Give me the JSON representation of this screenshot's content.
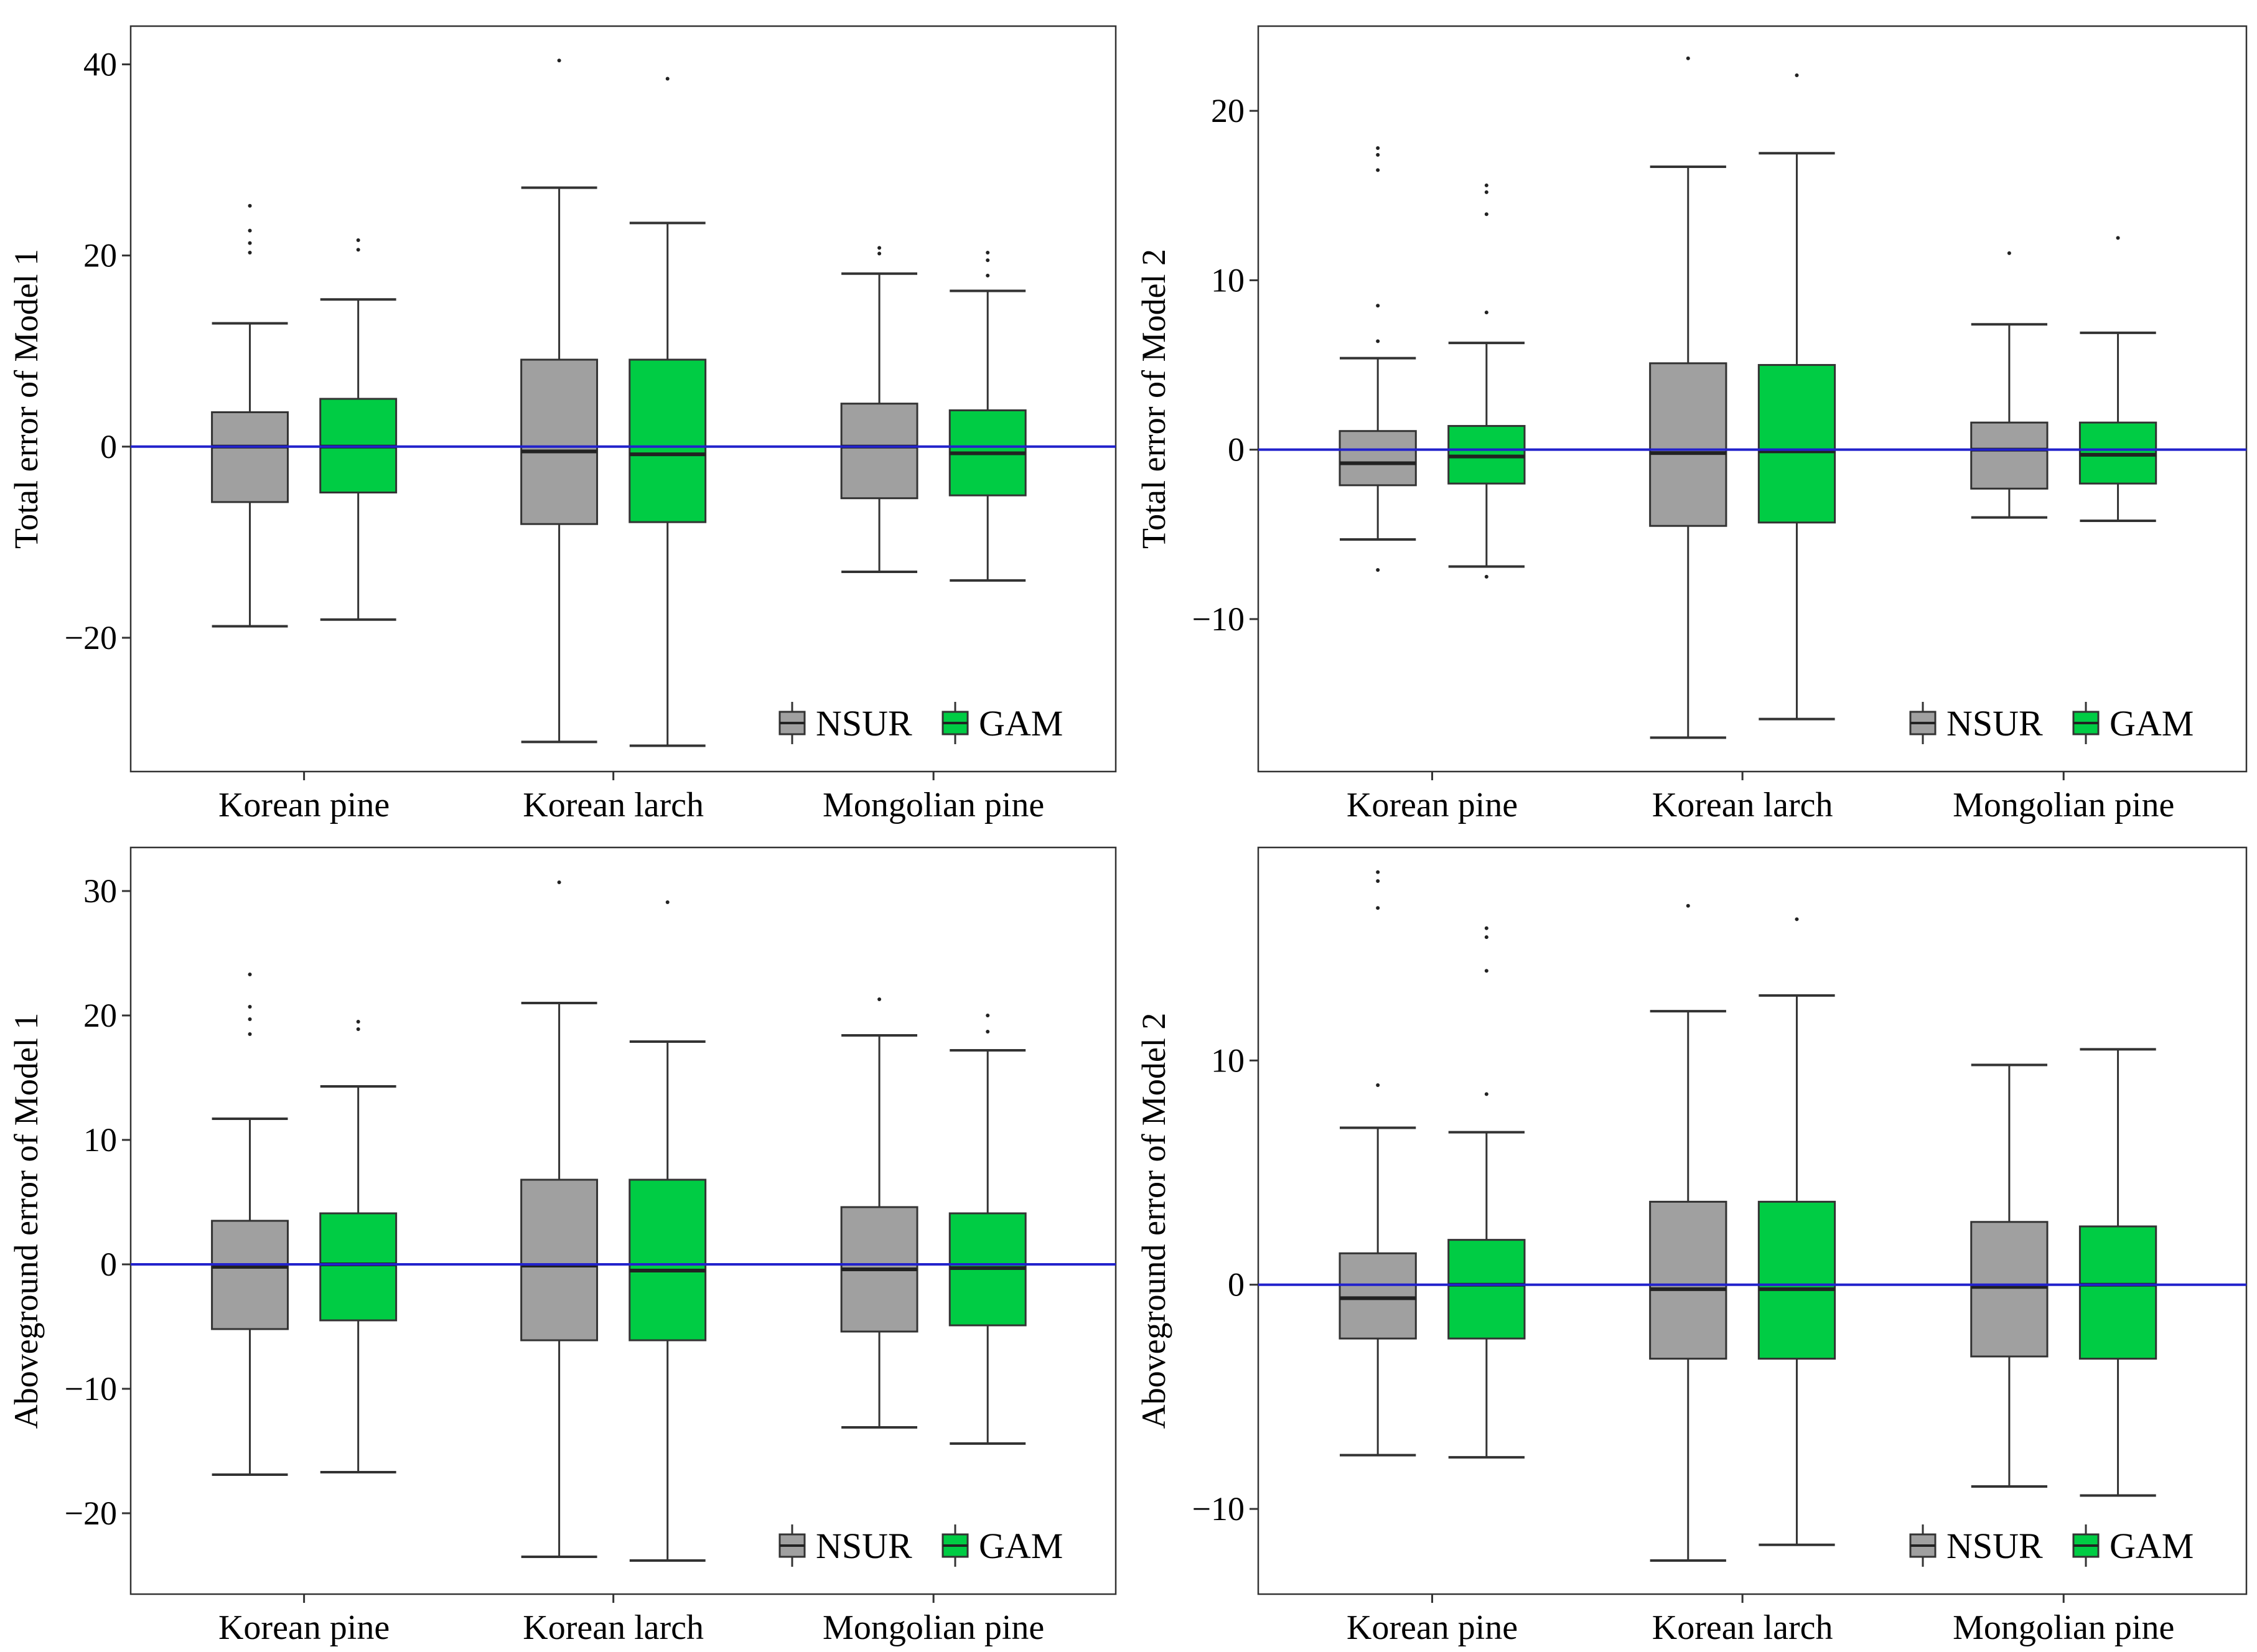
{
  "colors": {
    "NSUR": "#a0a0a0",
    "GAM": "#00cc44",
    "refline": "#2222cc",
    "frame": "#333333"
  },
  "legend": [
    {
      "name": "NSUR",
      "color": "#a0a0a0"
    },
    {
      "name": "GAM",
      "color": "#00cc44"
    }
  ],
  "chart_data": [
    {
      "type": "box",
      "ylabel": "Total error of Model 1",
      "categories": [
        "Korean pine",
        "Korean larch",
        "Mongolian pine"
      ],
      "ylim": [
        -34,
        44
      ],
      "yticks": [
        -20,
        0,
        20,
        40
      ],
      "ytick_labels": [
        "−20",
        "0",
        "20",
        "40"
      ],
      "refline": 0,
      "legend_position": "bottom-right",
      "series": [
        {
          "name": "NSUR",
          "boxes": [
            {
              "low": -18.8,
              "q1": -5.8,
              "median": 0,
              "q3": 3.6,
              "high": 12.9,
              "outliers": [
                20.3,
                21.3,
                22.6,
                25.2
              ]
            },
            {
              "low": -30.9,
              "q1": -8.1,
              "median": -0.5,
              "q3": 9.1,
              "high": 27.1,
              "outliers": [
                40.4
              ]
            },
            {
              "low": -13.1,
              "q1": -5.4,
              "median": 0,
              "q3": 4.5,
              "high": 18.1,
              "outliers": [
                20.2,
                20.8
              ]
            }
          ]
        },
        {
          "name": "GAM",
          "boxes": [
            {
              "low": -18.1,
              "q1": -4.8,
              "median": 0,
              "q3": 5.0,
              "high": 15.4,
              "outliers": [
                20.6,
                21.6
              ]
            },
            {
              "low": -31.3,
              "q1": -7.9,
              "median": -0.8,
              "q3": 9.1,
              "high": 23.4,
              "outliers": [
                38.5
              ]
            },
            {
              "low": -14.0,
              "q1": -5.1,
              "median": -0.7,
              "q3": 3.8,
              "high": 16.3,
              "outliers": [
                17.9,
                19.5,
                20.3
              ]
            }
          ]
        }
      ]
    },
    {
      "type": "box",
      "ylabel": "Total error of Model 2",
      "categories": [
        "Korean pine",
        "Korean larch",
        "Mongolian pine"
      ],
      "ylim": [
        -19,
        25
      ],
      "yticks": [
        -10,
        0,
        10,
        20
      ],
      "ytick_labels": [
        "−10",
        "0",
        "10",
        "20"
      ],
      "refline": 0,
      "legend_position": "bottom-right",
      "series": [
        {
          "name": "NSUR",
          "boxes": [
            {
              "low": -5.3,
              "q1": -2.1,
              "median": -0.8,
              "q3": 1.1,
              "high": 5.4,
              "outliers": [
                -7.1,
                6.4,
                8.5,
                16.5,
                17.4,
                17.8
              ]
            },
            {
              "low": -17.0,
              "q1": -4.5,
              "median": -0.2,
              "q3": 5.1,
              "high": 16.7,
              "outliers": [
                23.1
              ]
            },
            {
              "low": -4.0,
              "q1": -2.3,
              "median": 0,
              "q3": 1.6,
              "high": 7.4,
              "outliers": [
                11.6
              ]
            }
          ]
        },
        {
          "name": "GAM",
          "boxes": [
            {
              "low": -6.9,
              "q1": -2.0,
              "median": -0.4,
              "q3": 1.4,
              "high": 6.3,
              "outliers": [
                -7.5,
                8.1,
                13.9,
                15.2,
                15.6
              ]
            },
            {
              "low": -15.9,
              "q1": -4.3,
              "median": -0.1,
              "q3": 5.0,
              "high": 17.5,
              "outliers": [
                22.1
              ]
            },
            {
              "low": -4.2,
              "q1": -2.0,
              "median": -0.3,
              "q3": 1.6,
              "high": 6.9,
              "outliers": [
                12.5
              ]
            }
          ]
        }
      ]
    },
    {
      "type": "box",
      "ylabel": "Aboveground error of Model 1",
      "categories": [
        "Korean pine",
        "Korean larch",
        "Mongolian pine"
      ],
      "ylim": [
        -26.5,
        33.5
      ],
      "yticks": [
        -20,
        -10,
        0,
        10,
        20,
        30
      ],
      "ytick_labels": [
        "−20",
        "−10",
        "0",
        "10",
        "20",
        "30"
      ],
      "refline": 0,
      "legend_position": "bottom-right",
      "series": [
        {
          "name": "NSUR",
          "boxes": [
            {
              "low": -16.9,
              "q1": -5.2,
              "median": -0.2,
              "q3": 3.5,
              "high": 11.7,
              "outliers": [
                18.5,
                19.7,
                20.7,
                23.3
              ]
            },
            {
              "low": -23.5,
              "q1": -6.1,
              "median": -0.1,
              "q3": 6.8,
              "high": 21.0,
              "outliers": [
                30.7
              ]
            },
            {
              "low": -13.1,
              "q1": -5.4,
              "median": -0.4,
              "q3": 4.6,
              "high": 18.4,
              "outliers": [
                21.3
              ]
            }
          ]
        },
        {
          "name": "GAM",
          "boxes": [
            {
              "low": -16.7,
              "q1": -4.5,
              "median": 0,
              "q3": 4.1,
              "high": 14.3,
              "outliers": [
                18.9,
                19.5
              ]
            },
            {
              "low": -23.8,
              "q1": -6.1,
              "median": -0.5,
              "q3": 6.8,
              "high": 17.9,
              "outliers": [
                29.1
              ]
            },
            {
              "low": -14.4,
              "q1": -4.9,
              "median": -0.3,
              "q3": 4.1,
              "high": 17.2,
              "outliers": [
                18.7,
                20.0
              ]
            }
          ]
        }
      ]
    },
    {
      "type": "box",
      "ylabel": "Aboveground error of Model 2",
      "categories": [
        "Korean pine",
        "Korean larch",
        "Mongolian pine"
      ],
      "ylim": [
        -13.8,
        19.5
      ],
      "yticks": [
        -10,
        0,
        10
      ],
      "ytick_labels": [
        "−10",
        "0",
        "10"
      ],
      "refline": 0,
      "legend_position": "bottom-right",
      "series": [
        {
          "name": "NSUR",
          "boxes": [
            {
              "low": -7.6,
              "q1": -2.4,
              "median": -0.6,
              "q3": 1.4,
              "high": 7.0,
              "outliers": [
                8.9,
                16.8,
                18.0,
                18.4
              ]
            },
            {
              "low": -12.3,
              "q1": -3.3,
              "median": -0.2,
              "q3": 3.7,
              "high": 12.2,
              "outliers": [
                16.9
              ]
            },
            {
              "low": -9.0,
              "q1": -3.2,
              "median": -0.1,
              "q3": 2.8,
              "high": 9.8,
              "outliers": []
            }
          ]
        },
        {
          "name": "GAM",
          "boxes": [
            {
              "low": -7.7,
              "q1": -2.4,
              "median": 0,
              "q3": 2.0,
              "high": 6.8,
              "outliers": [
                8.5,
                14.0,
                15.5,
                15.9
              ]
            },
            {
              "low": -11.6,
              "q1": -3.3,
              "median": -0.2,
              "q3": 3.7,
              "high": 12.9,
              "outliers": [
                16.3
              ]
            },
            {
              "low": -9.4,
              "q1": -3.3,
              "median": 0,
              "q3": 2.6,
              "high": 10.5,
              "outliers": []
            }
          ]
        }
      ]
    }
  ]
}
